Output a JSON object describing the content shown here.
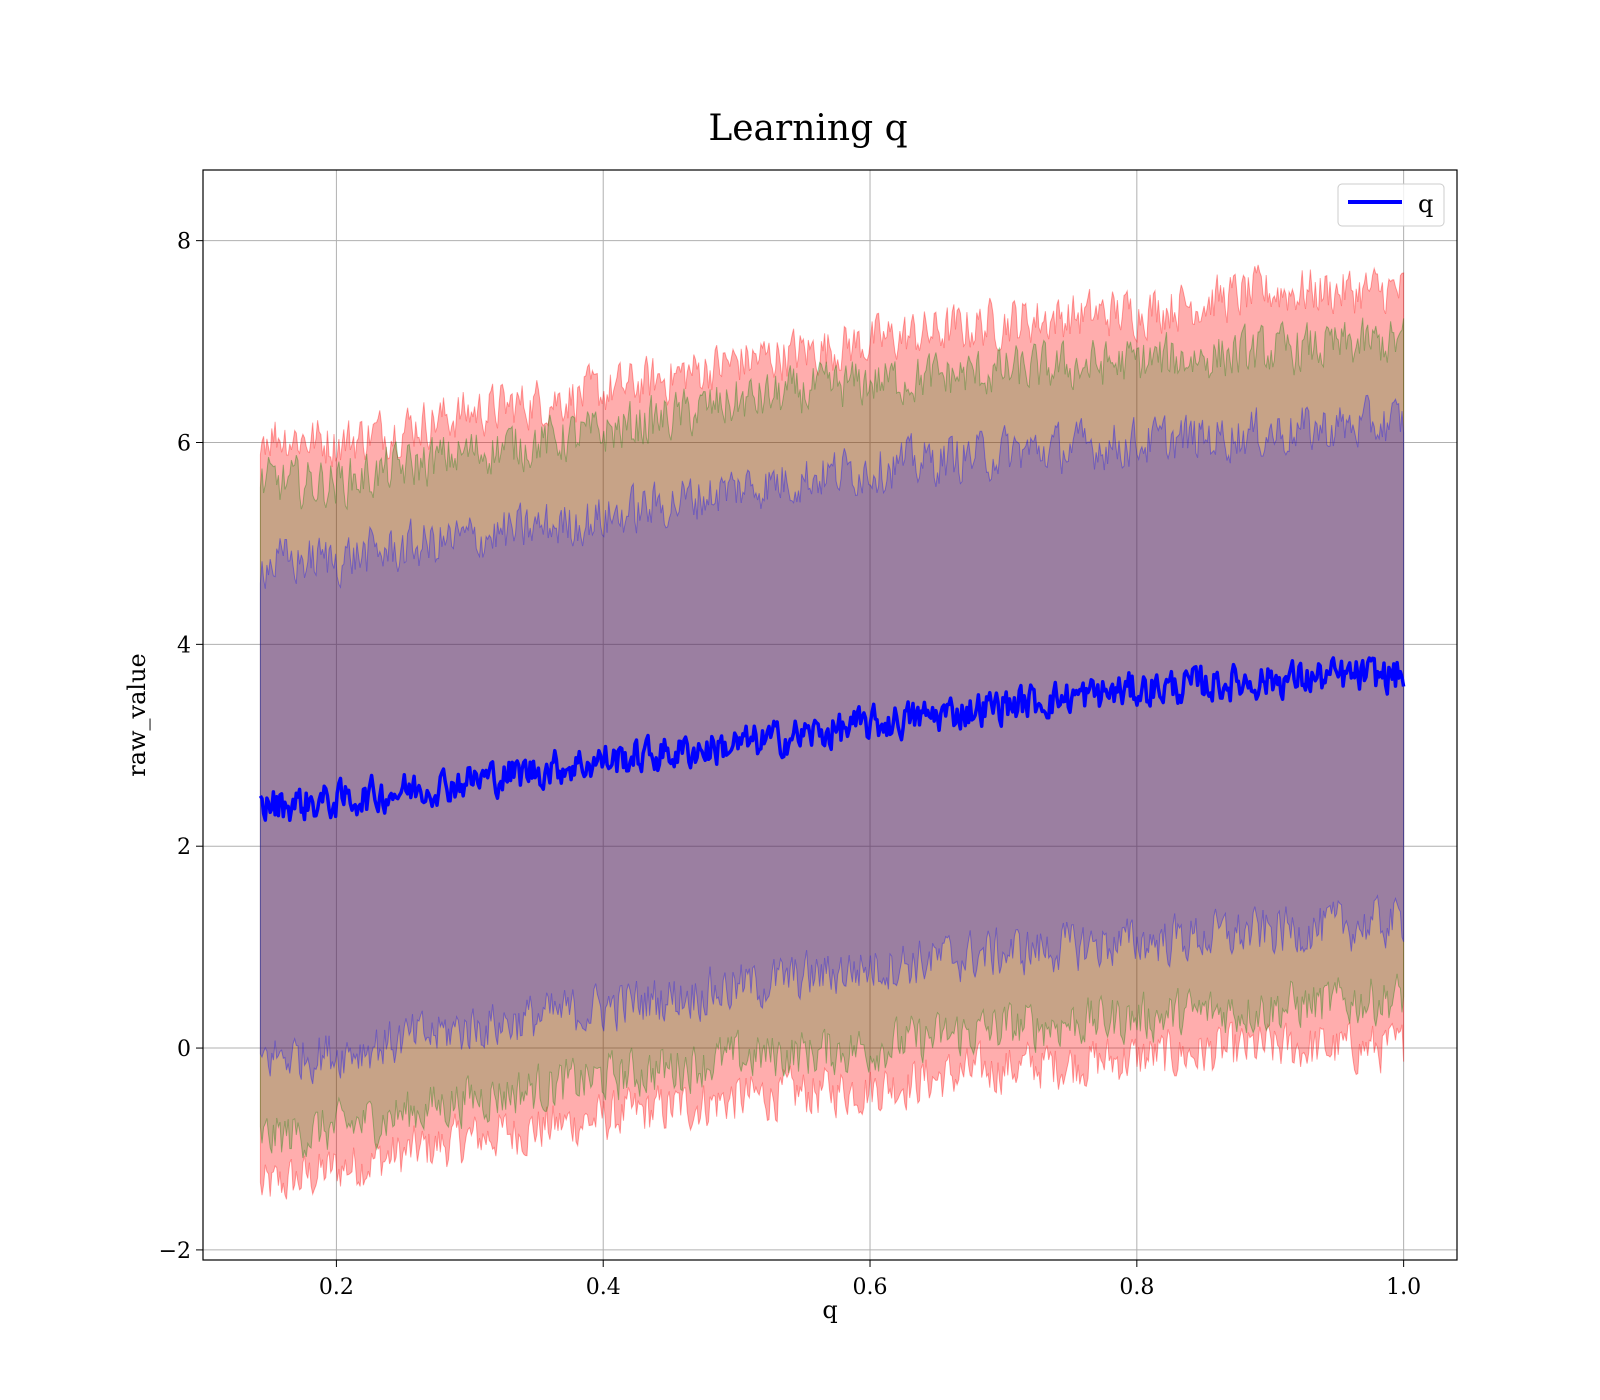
{
  "chart_data": {
    "type": "area",
    "title": "Learning q",
    "xlabel": "q",
    "ylabel": "raw_value",
    "xlim": [
      0.1,
      1.04
    ],
    "ylim": [
      -2.1,
      8.7
    ],
    "x_ticks": [
      0.2,
      0.4,
      0.6,
      0.8,
      1.0
    ],
    "x_tick_labels": [
      "0.2",
      "0.4",
      "0.6",
      "0.8",
      "1.0"
    ],
    "y_ticks": [
      -2,
      0,
      2,
      4,
      6,
      8
    ],
    "y_tick_labels": [
      "−2",
      "0",
      "2",
      "4",
      "6",
      "8"
    ],
    "grid": true,
    "legend": {
      "position": "top-right",
      "entries": [
        {
          "label": "q",
          "color": "#0000ff"
        }
      ]
    },
    "x_start": 0.143,
    "x_end": 1.0,
    "series": [
      {
        "name": "q",
        "role": "line",
        "color": "#0000ff",
        "x": [
          0.143,
          0.2,
          0.3,
          0.4,
          0.5,
          0.6,
          0.7,
          0.8,
          0.9,
          1.0
        ],
        "values": [
          2.4,
          2.45,
          2.65,
          2.85,
          3.0,
          3.2,
          3.4,
          3.55,
          3.65,
          3.7
        ]
      },
      {
        "role": "band",
        "color": "#ff0000",
        "opacity": 0.32,
        "x": [
          0.143,
          0.2,
          0.3,
          0.4,
          0.5,
          0.6,
          0.7,
          0.8,
          0.9,
          1.0
        ],
        "lower": [
          -1.4,
          -1.2,
          -0.9,
          -0.7,
          -0.5,
          -0.4,
          -0.2,
          -0.1,
          0.0,
          0.0
        ],
        "upper": [
          6.1,
          6.0,
          6.3,
          6.5,
          6.8,
          7.0,
          7.2,
          7.3,
          7.5,
          7.5
        ]
      },
      {
        "role": "band",
        "color": "#008000",
        "opacity": 0.22,
        "x": [
          0.143,
          0.2,
          0.3,
          0.4,
          0.5,
          0.6,
          0.7,
          0.8,
          0.9,
          1.0
        ],
        "lower": [
          -0.9,
          -0.8,
          -0.5,
          -0.3,
          -0.1,
          0.0,
          0.2,
          0.3,
          0.4,
          0.5
        ],
        "upper": [
          5.6,
          5.6,
          5.9,
          6.1,
          6.4,
          6.6,
          6.7,
          6.8,
          6.9,
          7.0
        ]
      },
      {
        "role": "band",
        "color": "#0000ff",
        "opacity": 0.22,
        "x": [
          0.143,
          0.2,
          0.3,
          0.4,
          0.5,
          0.6,
          0.7,
          0.8,
          0.9,
          1.0
        ],
        "lower": [
          -0.1,
          -0.05,
          0.2,
          0.4,
          0.6,
          0.8,
          0.95,
          1.05,
          1.15,
          1.25
        ],
        "upper": [
          4.8,
          4.85,
          5.05,
          5.25,
          5.55,
          5.75,
          5.9,
          6.0,
          6.1,
          6.2
        ]
      }
    ]
  }
}
